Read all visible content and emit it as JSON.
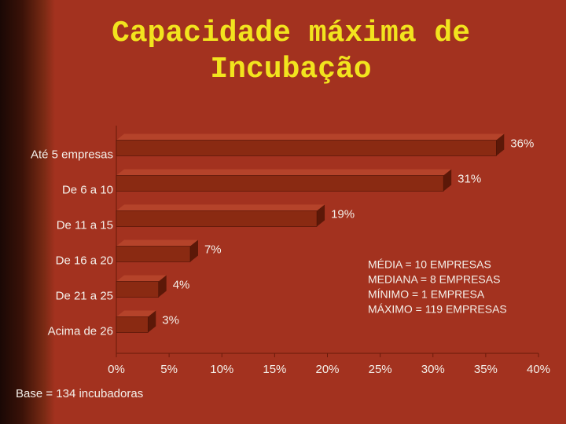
{
  "chart_data": {
    "type": "bar",
    "orientation": "horizontal",
    "title": "Capacidade máxima de Incubação",
    "categories": [
      "Até 5 empresas",
      "De 6 a 10",
      "De 11 a 15",
      "De 16 a 20",
      "De 21 a 25",
      "Acima de 26"
    ],
    "values": [
      36,
      31,
      19,
      7,
      4,
      3
    ],
    "value_labels": [
      "36%",
      "31%",
      "19%",
      "7%",
      "4%",
      "3%"
    ],
    "color": "#8a2a12",
    "xlim": [
      0,
      40
    ],
    "xticks": [
      {
        "value": 0,
        "label": "0%"
      },
      {
        "value": 5,
        "label": "5%"
      },
      {
        "value": 10,
        "label": "10%"
      },
      {
        "value": 15,
        "label": "15%"
      },
      {
        "value": 20,
        "label": "20%"
      },
      {
        "value": 25,
        "label": "25%"
      },
      {
        "value": 30,
        "label": "30%"
      },
      {
        "value": 35,
        "label": "35%"
      },
      {
        "value": 40,
        "label": "40%"
      }
    ],
    "annotations": [
      "MÉDIA = 10 EMPRESAS",
      "MEDIANA = 8 EMPRESAS",
      "MÍNIMO = 1 EMPRESA",
      "MÁXIMO = 119 EMPRESAS"
    ],
    "footnote": "Base = 134 incubadoras"
  }
}
